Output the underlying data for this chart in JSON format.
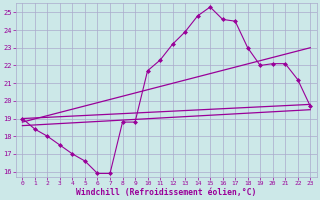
{
  "bg_color": "#cce8e8",
  "grid_color": "#aaaacc",
  "line_color": "#990099",
  "marker_color": "#990099",
  "xlabel": "Windchill (Refroidissement éolien,°C)",
  "xlabel_color": "#990099",
  "tick_color": "#990099",
  "xlim": [
    -0.5,
    23.5
  ],
  "ylim": [
    15.7,
    25.5
  ],
  "yticks": [
    16,
    17,
    18,
    19,
    20,
    21,
    22,
    23,
    24,
    25
  ],
  "xticks": [
    0,
    1,
    2,
    3,
    4,
    5,
    6,
    7,
    8,
    9,
    10,
    11,
    12,
    13,
    14,
    15,
    16,
    17,
    18,
    19,
    20,
    21,
    22,
    23
  ],
  "line1_x": [
    0,
    1,
    2,
    3,
    4,
    5,
    6,
    7,
    8,
    9,
    10,
    11,
    12,
    13,
    14,
    15,
    16,
    17,
    18,
    19,
    20,
    21,
    22,
    23
  ],
  "line1_y": [
    19.0,
    18.4,
    18.0,
    17.5,
    17.0,
    16.6,
    15.9,
    15.9,
    18.8,
    18.8,
    21.7,
    22.3,
    23.2,
    23.9,
    24.8,
    25.3,
    24.6,
    24.5,
    23.0,
    22.0,
    22.1,
    22.1,
    21.2,
    19.7
  ],
  "line2_x": [
    0,
    23
  ],
  "line2_y": [
    18.8,
    23.0
  ],
  "line3_x": [
    0,
    23
  ],
  "line3_y": [
    19.0,
    19.8
  ],
  "line4_x": [
    0,
    23
  ],
  "line4_y": [
    18.6,
    19.5
  ]
}
